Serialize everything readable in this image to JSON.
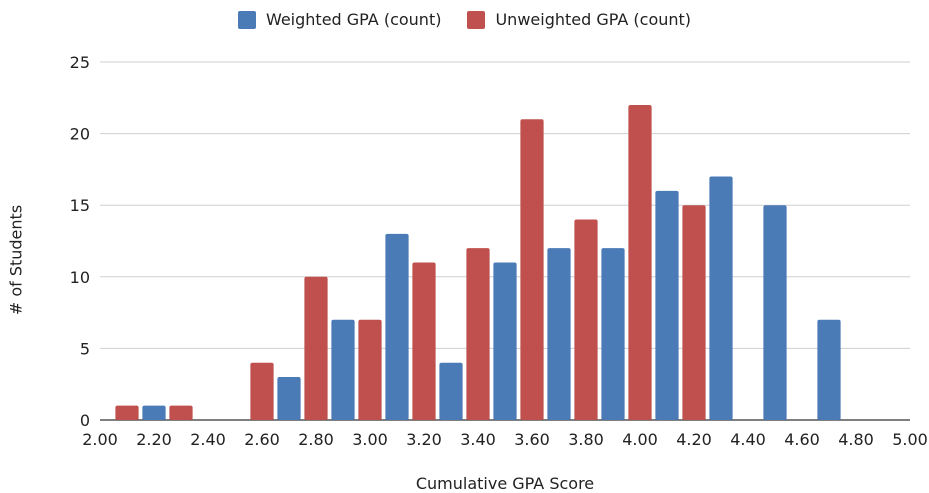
{
  "chart_data": {
    "type": "bar",
    "xlabel": "Cumulative GPA Score",
    "ylabel": "# of Students",
    "ylim": [
      0,
      25
    ],
    "xlim": [
      2.0,
      5.0
    ],
    "y_ticks": [
      "0",
      "5",
      "10",
      "15",
      "20",
      "25"
    ],
    "x_ticks": [
      "2.00",
      "2.20",
      "2.40",
      "2.60",
      "2.80",
      "3.00",
      "3.20",
      "3.40",
      "3.60",
      "3.80",
      "4.00",
      "4.20",
      "4.40",
      "4.60",
      "4.80",
      "5.00"
    ],
    "grid": true,
    "legend_position": "top",
    "series": [
      {
        "name": "Weighted GPA (count)",
        "color": "#4a7bb7",
        "points": [
          {
            "x": 2.2,
            "y": 1
          },
          {
            "x": 2.7,
            "y": 3
          },
          {
            "x": 2.9,
            "y": 7
          },
          {
            "x": 3.1,
            "y": 13
          },
          {
            "x": 3.3,
            "y": 4
          },
          {
            "x": 3.5,
            "y": 11
          },
          {
            "x": 3.7,
            "y": 12
          },
          {
            "x": 3.9,
            "y": 12
          },
          {
            "x": 4.1,
            "y": 16
          },
          {
            "x": 4.3,
            "y": 17
          },
          {
            "x": 4.5,
            "y": 15
          },
          {
            "x": 4.7,
            "y": 7
          }
        ]
      },
      {
        "name": "Unweighted GPA (count)",
        "color": "#c0504d",
        "points": [
          {
            "x": 2.1,
            "y": 1
          },
          {
            "x": 2.3,
            "y": 1
          },
          {
            "x": 2.6,
            "y": 4
          },
          {
            "x": 2.8,
            "y": 10
          },
          {
            "x": 3.0,
            "y": 7
          },
          {
            "x": 3.2,
            "y": 11
          },
          {
            "x": 3.4,
            "y": 12
          },
          {
            "x": 3.6,
            "y": 21
          },
          {
            "x": 3.8,
            "y": 14
          },
          {
            "x": 4.0,
            "y": 22
          },
          {
            "x": 4.2,
            "y": 15
          }
        ]
      }
    ]
  }
}
